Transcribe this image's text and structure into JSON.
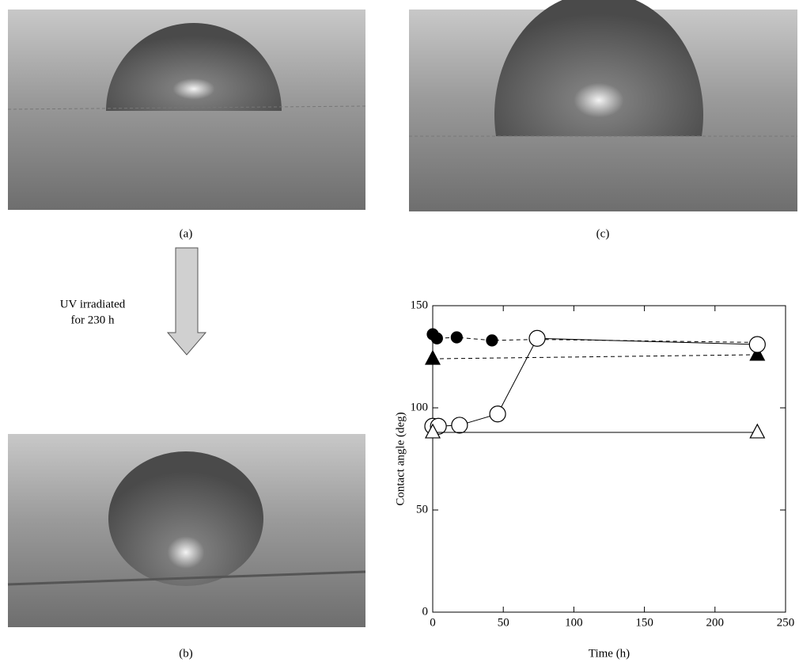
{
  "panel_labels": {
    "a": "(a)",
    "b": "(b)",
    "c": "(c)"
  },
  "annotation": [
    "UV irradiated",
    "for 230 h"
  ],
  "chart_data": {
    "type": "line",
    "xlabel": "Time (h)",
    "ylabel": "Contact angle (deg)",
    "xlim": [
      0,
      250
    ],
    "xticks": [
      0,
      50,
      100,
      150,
      200,
      250
    ],
    "ylim": [
      0,
      150
    ],
    "yticks": [
      0,
      50,
      100,
      150
    ],
    "series": [
      {
        "marker": "circle",
        "filled": true,
        "dashed": true,
        "color": "#000000",
        "x": [
          0,
          3,
          17,
          42,
          74,
          230
        ],
        "values": [
          136,
          134,
          134.5,
          133,
          133.5,
          132
        ]
      },
      {
        "marker": "triangle",
        "filled": true,
        "dashed": true,
        "color": "#000000",
        "x": [
          0,
          230
        ],
        "values": [
          124,
          126
        ]
      },
      {
        "marker": "circle",
        "filled": false,
        "dashed": false,
        "color": "#000000",
        "x": [
          0,
          4,
          19,
          46,
          74,
          230
        ],
        "values": [
          91,
          91,
          91.5,
          97,
          134,
          131
        ]
      },
      {
        "marker": "triangle",
        "filled": false,
        "dashed": false,
        "color": "#000000",
        "x": [
          0,
          230
        ],
        "values": [
          88,
          88
        ]
      }
    ]
  }
}
